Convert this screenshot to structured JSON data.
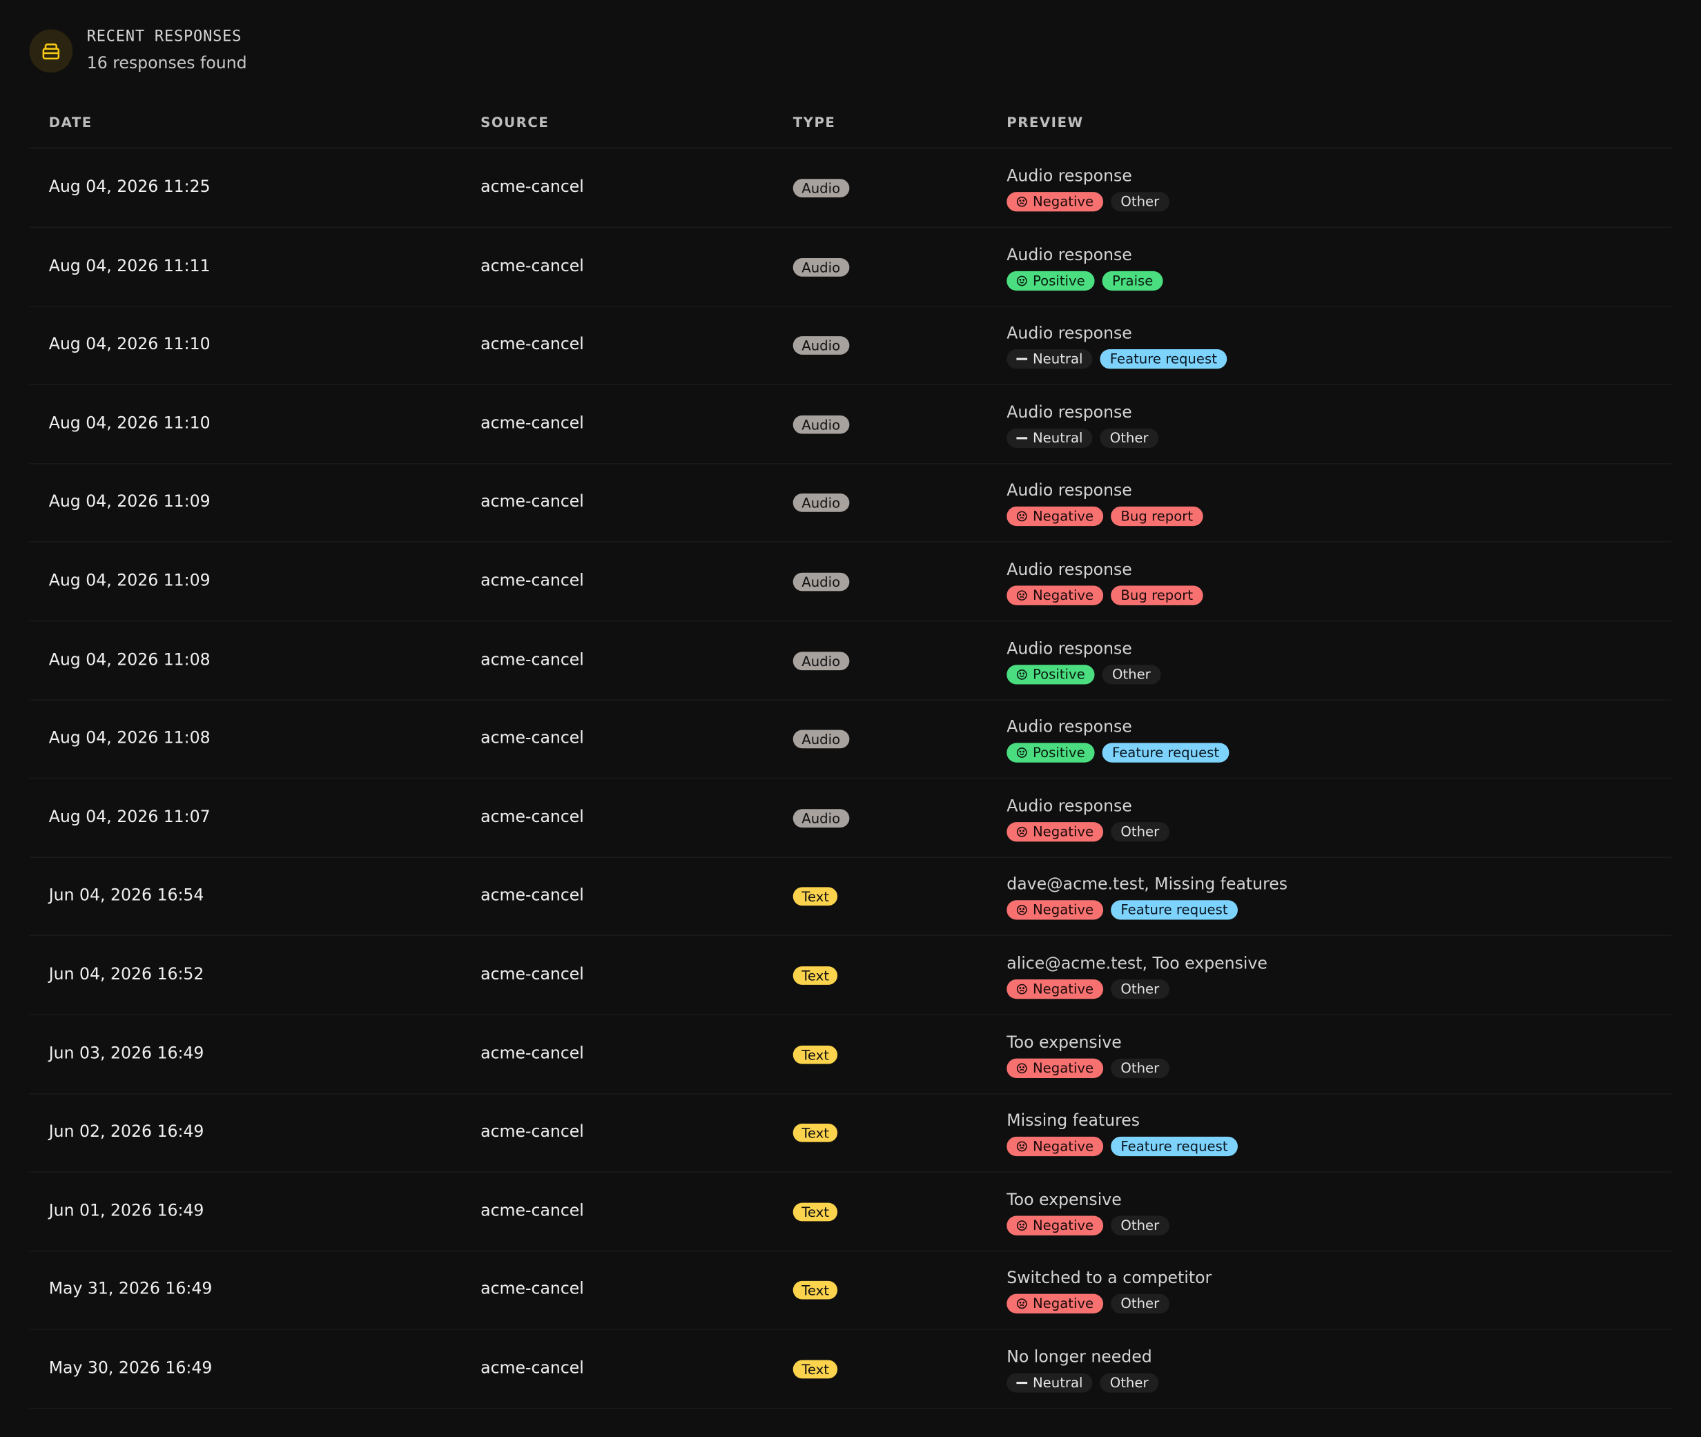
{
  "header": {
    "title": "RECENT RESPONSES",
    "subtitle": "16 responses found"
  },
  "table": {
    "columns": [
      "DATE",
      "SOURCE",
      "TYPE",
      "PREVIEW"
    ],
    "rows": [
      {
        "date": "Aug 04, 2026 11:25",
        "source": "acme-cancel",
        "type": "Audio",
        "preview": "Audio response",
        "sentiment": "Negative",
        "category": "Other"
      },
      {
        "date": "Aug 04, 2026 11:11",
        "source": "acme-cancel",
        "type": "Audio",
        "preview": "Audio response",
        "sentiment": "Positive",
        "category": "Praise"
      },
      {
        "date": "Aug 04, 2026 11:10",
        "source": "acme-cancel",
        "type": "Audio",
        "preview": "Audio response",
        "sentiment": "Neutral",
        "category": "Feature request"
      },
      {
        "date": "Aug 04, 2026 11:10",
        "source": "acme-cancel",
        "type": "Audio",
        "preview": "Audio response",
        "sentiment": "Neutral",
        "category": "Other"
      },
      {
        "date": "Aug 04, 2026 11:09",
        "source": "acme-cancel",
        "type": "Audio",
        "preview": "Audio response",
        "sentiment": "Negative",
        "category": "Bug report"
      },
      {
        "date": "Aug 04, 2026 11:09",
        "source": "acme-cancel",
        "type": "Audio",
        "preview": "Audio response",
        "sentiment": "Negative",
        "category": "Bug report"
      },
      {
        "date": "Aug 04, 2026 11:08",
        "source": "acme-cancel",
        "type": "Audio",
        "preview": "Audio response",
        "sentiment": "Positive",
        "category": "Other"
      },
      {
        "date": "Aug 04, 2026 11:08",
        "source": "acme-cancel",
        "type": "Audio",
        "preview": "Audio response",
        "sentiment": "Positive",
        "category": "Feature request"
      },
      {
        "date": "Aug 04, 2026 11:07",
        "source": "acme-cancel",
        "type": "Audio",
        "preview": "Audio response",
        "sentiment": "Negative",
        "category": "Other"
      },
      {
        "date": "Jun 04, 2026 16:54",
        "source": "acme-cancel",
        "type": "Text",
        "preview": "dave@acme.test, Missing features",
        "sentiment": "Negative",
        "category": "Feature request"
      },
      {
        "date": "Jun 04, 2026 16:52",
        "source": "acme-cancel",
        "type": "Text",
        "preview": "alice@acme.test, Too expensive",
        "sentiment": "Negative",
        "category": "Other"
      },
      {
        "date": "Jun 03, 2026 16:49",
        "source": "acme-cancel",
        "type": "Text",
        "preview": "Too expensive",
        "sentiment": "Negative",
        "category": "Other"
      },
      {
        "date": "Jun 02, 2026 16:49",
        "source": "acme-cancel",
        "type": "Text",
        "preview": "Missing features",
        "sentiment": "Negative",
        "category": "Feature request"
      },
      {
        "date": "Jun 01, 2026 16:49",
        "source": "acme-cancel",
        "type": "Text",
        "preview": "Too expensive",
        "sentiment": "Negative",
        "category": "Other"
      },
      {
        "date": "May 31, 2026 16:49",
        "source": "acme-cancel",
        "type": "Text",
        "preview": "Switched to a competitor",
        "sentiment": "Negative",
        "category": "Other"
      },
      {
        "date": "May 30, 2026 16:49",
        "source": "acme-cancel",
        "type": "Text",
        "preview": "No longer needed",
        "sentiment": "Neutral",
        "category": "Other"
      }
    ]
  }
}
